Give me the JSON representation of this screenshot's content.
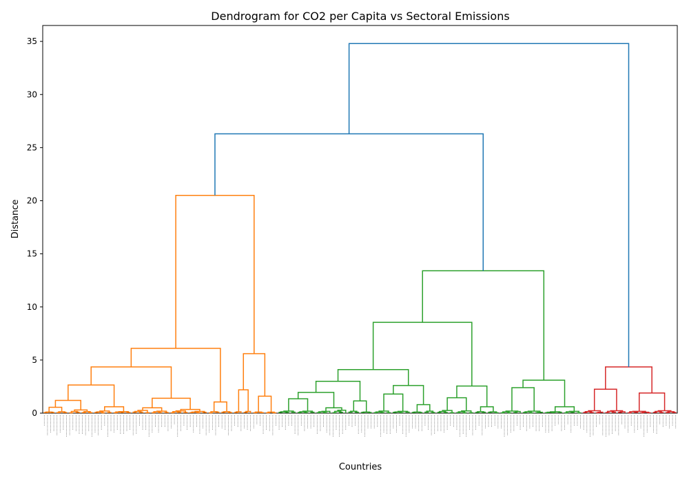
{
  "chart_data": {
    "type": "dendrogram",
    "title": "Dendrogram for CO2 per Capita vs Sectoral Emissions",
    "xlabel": "Countries",
    "ylabel": "Distance",
    "ylim": [
      0,
      36.5
    ],
    "yticks": [
      0,
      5,
      10,
      15,
      20,
      25,
      30,
      35
    ],
    "grid": false,
    "leaf_count": 200,
    "merges": [
      {
        "name": "root",
        "color": "#1f77b4",
        "height": 34.8,
        "left": "C123",
        "right": "R"
      },
      {
        "name": "C123",
        "color": "#1f77b4",
        "height": 26.3,
        "left": "O",
        "right": "G"
      },
      {
        "name": "O",
        "color": "#ff7f0e",
        "height": 20.5,
        "left": "O1",
        "right": "O2"
      },
      {
        "name": "O1",
        "color": "#ff7f0e",
        "height": 6.1,
        "left": "O1a",
        "right": "O1b"
      },
      {
        "name": "O1a",
        "color": "#ff7f0e",
        "height": 4.35,
        "left": "O1a1",
        "right": "O1a2"
      },
      {
        "name": "O1a1",
        "color": "#ff7f0e",
        "height": 2.65,
        "left": "O1a1x",
        "right": "O1a1y"
      },
      {
        "name": "O1a1x",
        "color": "#ff7f0e",
        "height": 1.2,
        "left": "O1a1x1",
        "right": "O1a1x2"
      },
      {
        "name": "O1a1x1",
        "color": "#ff7f0e",
        "height": 0.55,
        "left": [
          0,
          4
        ],
        "right": [
          4,
          8
        ]
      },
      {
        "name": "O1a1x2",
        "color": "#ff7f0e",
        "height": 0.3,
        "left": [
          8,
          12
        ],
        "right": [
          12,
          16
        ]
      },
      {
        "name": "O1a1y",
        "color": "#ff7f0e",
        "height": 0.6,
        "left": [
          16,
          22
        ],
        "right": [
          22,
          28
        ]
      },
      {
        "name": "O1a2",
        "color": "#ff7f0e",
        "height": 1.4,
        "left": "O1a2x",
        "right": "O1a2y"
      },
      {
        "name": "O1a2x",
        "color": "#ff7f0e",
        "height": 0.5,
        "left": [
          28,
          34
        ],
        "right": [
          34,
          40
        ]
      },
      {
        "name": "O1a2y",
        "color": "#ff7f0e",
        "height": 0.35,
        "left": [
          40,
          46
        ],
        "right": [
          46,
          52
        ]
      },
      {
        "name": "O1b",
        "color": "#ff7f0e",
        "height": 1.05,
        "left": [
          52,
          56
        ],
        "right": [
          56,
          60
        ]
      },
      {
        "name": "O2",
        "color": "#ff7f0e",
        "height": 5.6,
        "left": "O2a",
        "right": "O2b"
      },
      {
        "name": "O2a",
        "color": "#ff7f0e",
        "height": 2.2,
        "left": [
          60,
          63
        ],
        "right": [
          63,
          66
        ]
      },
      {
        "name": "O2b",
        "color": "#ff7f0e",
        "height": 1.6,
        "left": [
          66,
          70
        ],
        "right": [
          70,
          74
        ]
      },
      {
        "name": "G",
        "color": "#2ca02c",
        "height": 13.4,
        "left": "G1",
        "right": "G2"
      },
      {
        "name": "G1",
        "color": "#2ca02c",
        "height": 8.55,
        "left": "G1a",
        "right": "G1b"
      },
      {
        "name": "G1a",
        "color": "#2ca02c",
        "height": 4.1,
        "left": "G1a1",
        "right": "G1a2"
      },
      {
        "name": "G1a1",
        "color": "#2ca02c",
        "height": 3.0,
        "left": "G1a1x",
        "right": "G1a1y"
      },
      {
        "name": "G1a1x",
        "color": "#2ca02c",
        "height": 1.95,
        "left": "G1a1x1",
        "right": "G1a1x2"
      },
      {
        "name": "G1a1x1",
        "color": "#2ca02c",
        "height": 1.35,
        "left": [
          74,
          80
        ],
        "right": [
          80,
          86
        ]
      },
      {
        "name": "G1a1x2",
        "color": "#2ca02c",
        "height": 0.5,
        "left": [
          86,
          91
        ],
        "right": [
          91,
          96
        ]
      },
      {
        "name": "G1a1y",
        "color": "#2ca02c",
        "height": 1.15,
        "left": [
          96,
          100
        ],
        "right": [
          100,
          104
        ]
      },
      {
        "name": "G1a2",
        "color": "#2ca02c",
        "height": 2.6,
        "left": "G1a2x",
        "right": "G1a2y"
      },
      {
        "name": "G1a2x",
        "color": "#2ca02c",
        "height": 1.8,
        "left": [
          104,
          110
        ],
        "right": [
          110,
          116
        ]
      },
      {
        "name": "G1a2y",
        "color": "#2ca02c",
        "height": 0.8,
        "left": [
          116,
          120
        ],
        "right": [
          120,
          124
        ]
      },
      {
        "name": "G1b",
        "color": "#2ca02c",
        "height": 2.55,
        "left": "G1b1",
        "right": "G1b2"
      },
      {
        "name": "G1b1",
        "color": "#2ca02c",
        "height": 1.45,
        "left": [
          124,
          130
        ],
        "right": [
          130,
          136
        ]
      },
      {
        "name": "G1b2",
        "color": "#2ca02c",
        "height": 0.6,
        "left": [
          136,
          140
        ],
        "right": [
          140,
          144
        ]
      },
      {
        "name": "G2",
        "color": "#2ca02c",
        "height": 3.1,
        "left": "G2a",
        "right": "G2b"
      },
      {
        "name": "G2a",
        "color": "#2ca02c",
        "height": 2.4,
        "left": [
          144,
          151
        ],
        "right": [
          151,
          158
        ]
      },
      {
        "name": "G2b",
        "color": "#2ca02c",
        "height": 0.6,
        "left": [
          158,
          164
        ],
        "right": [
          164,
          170
        ]
      },
      {
        "name": "R",
        "color": "#d62728",
        "height": 4.35,
        "left": "R1",
        "right": "R2"
      },
      {
        "name": "R1",
        "color": "#d62728",
        "height": 2.25,
        "left": [
          170,
          177
        ],
        "right": [
          177,
          184
        ]
      },
      {
        "name": "R2",
        "color": "#d62728",
        "height": 1.9,
        "left": [
          184,
          192
        ],
        "right": [
          192,
          200
        ]
      }
    ]
  }
}
